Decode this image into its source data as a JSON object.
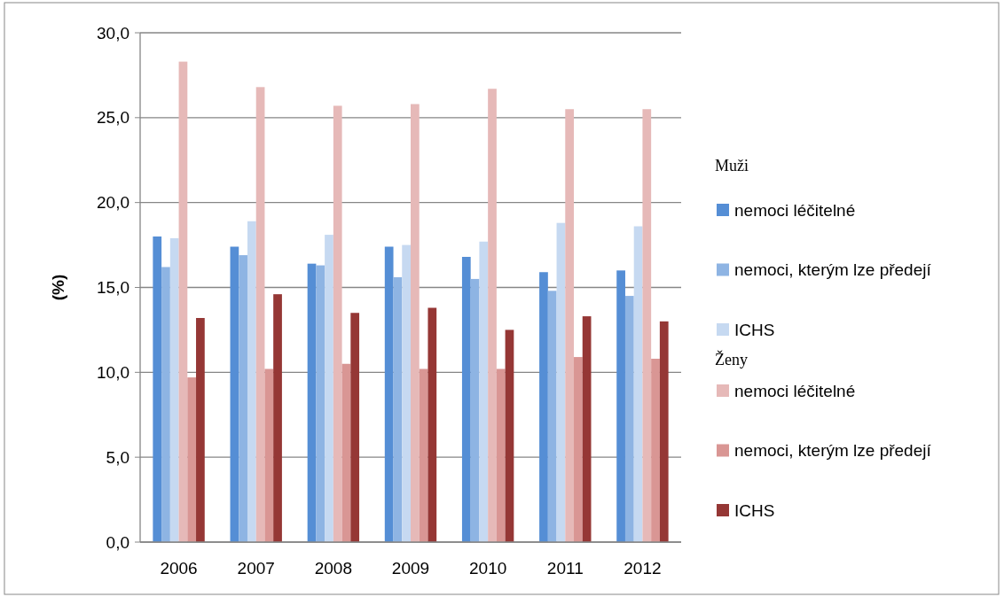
{
  "chart_data": {
    "type": "bar",
    "ylabel": "(%)",
    "legend_title": "Muži",
    "annotations": [
      "Ženy"
    ],
    "categories": [
      "2006",
      "2007",
      "2008",
      "2009",
      "2010",
      "2011",
      "2012"
    ],
    "series": [
      {
        "name": "nemoci léčitelné",
        "color": "#558ed5",
        "values": [
          18.0,
          17.4,
          16.4,
          17.4,
          16.8,
          15.9,
          16.0
        ]
      },
      {
        "name": "nemoci, kterým lze předejí",
        "color": "#8eb4e3",
        "values": [
          16.2,
          16.9,
          16.3,
          15.6,
          15.5,
          14.8,
          14.5
        ]
      },
      {
        "name": "ICHS",
        "color": "#c6d9f1",
        "values": [
          17.9,
          18.9,
          18.1,
          17.5,
          17.7,
          18.8,
          18.6
        ]
      },
      {
        "name": "nemoci léčitelné",
        "color": "#e6b9b8",
        "values": [
          28.3,
          26.8,
          25.7,
          25.8,
          26.7,
          25.5,
          25.5
        ]
      },
      {
        "name": "nemoci, kterým lze předejí",
        "color": "#d99694",
        "values": [
          9.7,
          10.2,
          10.5,
          10.2,
          10.2,
          10.9,
          10.8
        ]
      },
      {
        "name": "ICHS",
        "color": "#953735",
        "values": [
          13.2,
          14.6,
          13.5,
          13.8,
          12.5,
          13.3,
          13.0
        ]
      }
    ],
    "ylim": [
      0,
      30
    ],
    "yticks": [
      {
        "value": 0,
        "label": "0,0"
      },
      {
        "value": 5,
        "label": "5,0"
      },
      {
        "value": 10,
        "label": "10,0"
      },
      {
        "value": 15,
        "label": "15,0"
      },
      {
        "value": 20,
        "label": "20,0"
      },
      {
        "value": 25,
        "label": "25,0"
      },
      {
        "value": 30,
        "label": "30,0"
      }
    ],
    "grid": "y",
    "legend": "right"
  }
}
